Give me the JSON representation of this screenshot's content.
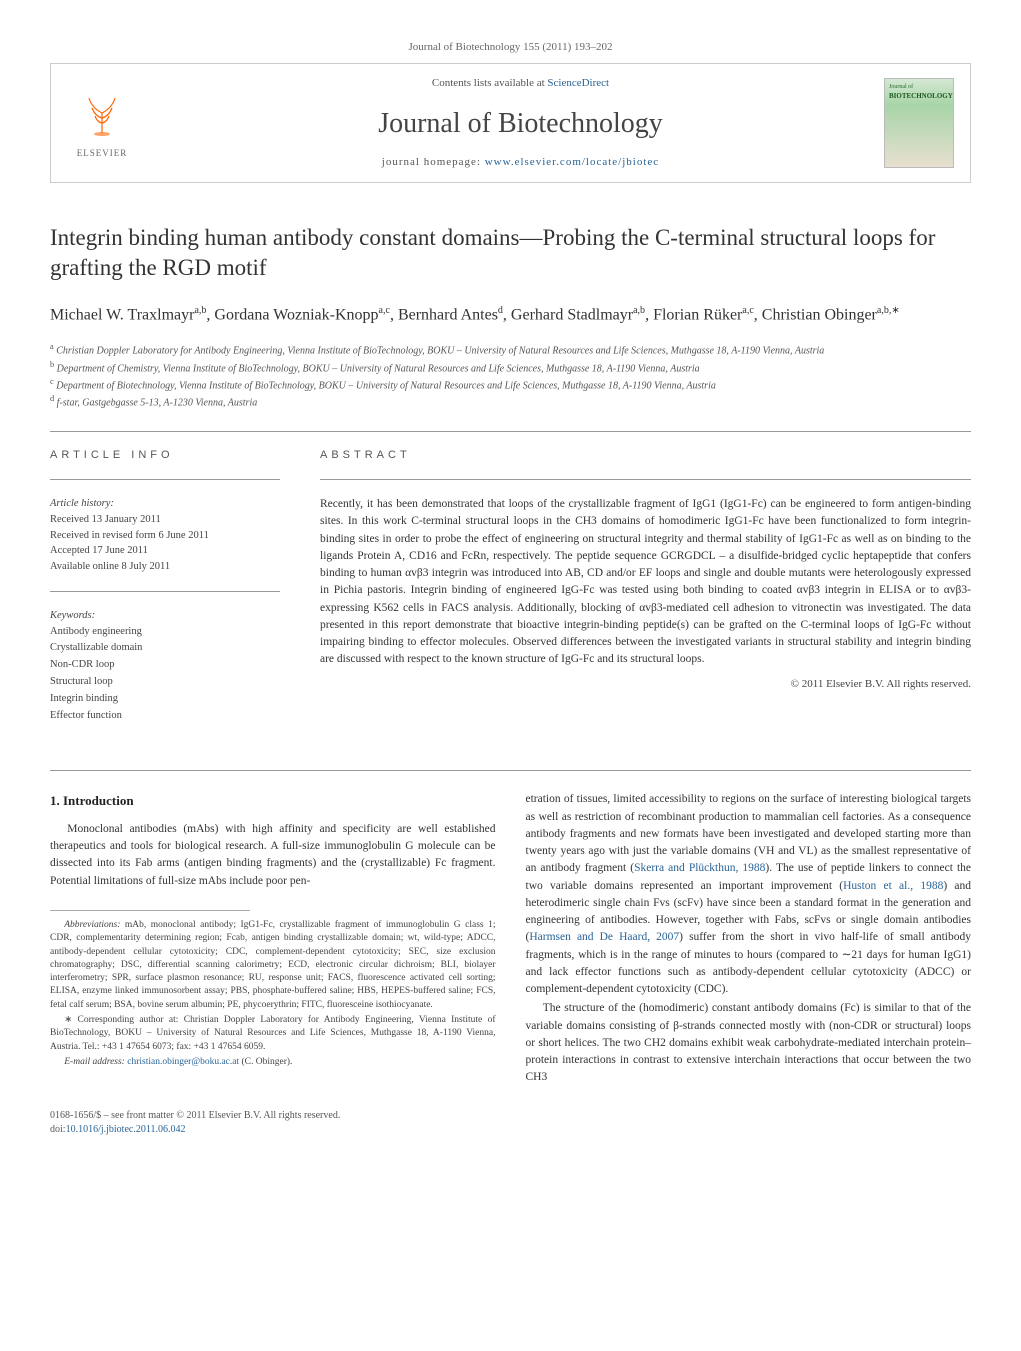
{
  "journal_header": "Journal of Biotechnology 155 (2011) 193–202",
  "header": {
    "contents_prefix": "Contents lists available at ",
    "contents_link": "ScienceDirect",
    "journal_title": "Journal of Biotechnology",
    "homepage_prefix": "journal homepage: ",
    "homepage_link": "www.elsevier.com/locate/jbiotec",
    "elsevier_label": "ELSEVIER",
    "cover_label": "Journal of",
    "cover_title": "BIOTECHNOLOGY"
  },
  "article": {
    "title": "Integrin binding human antibody constant domains—Probing the C-terminal structural loops for grafting the RGD motif",
    "authors_html": "Michael W. Traxlmayr<sup>a,b</sup>, Gordana Wozniak-Knopp<sup>a,c</sup>, Bernhard Antes<sup>d</sup>, Gerhard Stadlmayr<sup>a,b</sup>, Florian Rüker<sup>a,c</sup>, Christian Obinger<sup>a,b,∗</sup>",
    "affiliations": {
      "a": "Christian Doppler Laboratory for Antibody Engineering, Vienna Institute of BioTechnology, BOKU – University of Natural Resources and Life Sciences, Muthgasse 18, A-1190 Vienna, Austria",
      "b": "Department of Chemistry, Vienna Institute of BioTechnology, BOKU – University of Natural Resources and Life Sciences, Muthgasse 18, A-1190 Vienna, Austria",
      "c": "Department of Biotechnology, Vienna Institute of BioTechnology, BOKU – University of Natural Resources and Life Sciences, Muthgasse 18, A-1190 Vienna, Austria",
      "d": "f-star, Gastgebgasse 5-13, A-1230 Vienna, Austria"
    }
  },
  "article_info": {
    "heading": "article info",
    "history_label": "Article history:",
    "history": [
      "Received 13 January 2011",
      "Received in revised form 6 June 2011",
      "Accepted 17 June 2011",
      "Available online 8 July 2011"
    ],
    "keywords_label": "Keywords:",
    "keywords": [
      "Antibody engineering",
      "Crystallizable domain",
      "Non-CDR loop",
      "Structural loop",
      "Integrin binding",
      "Effector function"
    ]
  },
  "abstract": {
    "heading": "abstract",
    "text": "Recently, it has been demonstrated that loops of the crystallizable fragment of IgG1 (IgG1-Fc) can be engineered to form antigen-binding sites. In this work C-terminal structural loops in the CH3 domains of homodimeric IgG1-Fc have been functionalized to form integrin-binding sites in order to probe the effect of engineering on structural integrity and thermal stability of IgG1-Fc as well as on binding to the ligands Protein A, CD16 and FcRn, respectively. The peptide sequence GCRGDCL – a disulfide-bridged cyclic heptapeptide that confers binding to human αvβ3 integrin was introduced into AB, CD and/or EF loops and single and double mutants were heterologously expressed in Pichia pastoris. Integrin binding of engineered IgG-Fc was tested using both binding to coated αvβ3 integrin in ELISA or to αvβ3-expressing K562 cells in FACS analysis. Additionally, blocking of αvβ3-mediated cell adhesion to vitronectin was investigated. The data presented in this report demonstrate that bioactive integrin-binding peptide(s) can be grafted on the C-terminal loops of IgG-Fc without impairing binding to effector molecules. Observed differences between the investigated variants in structural stability and integrin binding are discussed with respect to the known structure of IgG-Fc and its structural loops.",
    "copyright": "© 2011 Elsevier B.V. All rights reserved."
  },
  "body": {
    "intro_heading": "1. Introduction",
    "col1_p1": "Monoclonal antibodies (mAbs) with high affinity and specificity are well established therapeutics and tools for biological research. A full-size immunoglobulin G molecule can be dissected into its Fab arms (antigen binding fragments) and the (crystallizable) Fc fragment. Potential limitations of full-size mAbs include poor pen-",
    "col2_p1": "etration of tissues, limited accessibility to regions on the surface of interesting biological targets as well as restriction of recombinant production to mammalian cell factories. As a consequence antibody fragments and new formats have been investigated and developed starting more than twenty years ago with just the variable domains (VH and VL) as the smallest representative of an antibody fragment (",
    "cite1": "Skerra and Plückthun, 1988",
    "col2_p1b": "). The use of peptide linkers to connect the two variable domains represented an important improvement (",
    "cite2": "Huston et al., 1988",
    "col2_p1c": ") and heterodimeric single chain Fvs (scFv) have since been a standard format in the generation and engineering of antibodies. However, together with Fabs, scFvs or single domain antibodies (",
    "cite3": "Harmsen and De Haard, 2007",
    "col2_p1d": ") suffer from the short in vivo half-life of small antibody fragments, which is in the range of minutes to hours (compared to ∼21 days for human IgG1) and lack effector functions such as antibody-dependent cellular cytotoxicity (ADCC) or complement-dependent cytotoxicity (CDC).",
    "col2_p2": "The structure of the (homodimeric) constant antibody domains (Fc) is similar to that of the variable domains consisting of β-strands connected mostly with (non-CDR or structural) loops or short helices. The two CH2 domains exhibit weak carbohydrate-mediated interchain protein–protein interactions in contrast to extensive interchain interactions that occur between the two CH3"
  },
  "footnotes": {
    "abbrev_label": "Abbreviations:",
    "abbrev_text": " mAb, monoclonal antibody; IgG1-Fc, crystallizable fragment of immunoglobulin G class 1; CDR, complementarity determining region; Fcab, antigen binding crystallizable domain; wt, wild-type; ADCC, antibody-dependent cellular cytotoxicity; CDC, complement-dependent cytotoxicity; SEC, size exclusion chromatography; DSC, differential scanning calorimetry; ECD, electronic circular dichroism; BLI, biolayer interferometry; SPR, surface plasmon resonance; RU, response unit; FACS, fluorescence activated cell sorting; ELISA, enzyme linked immunosorbent assay; PBS, phosphate-buffered saline; HBS, HEPES-buffered saline; FCS, fetal calf serum; BSA, bovine serum albumin; PE, phycoerythrin; FITC, fluoresceine isothiocyanate.",
    "corr_label": "∗ Corresponding author at: ",
    "corr_text": "Christian Doppler Laboratory for Antibody Engineering, Vienna Institute of BioTechnology, BOKU – University of Natural Resources and Life Sciences, Muthgasse 18, A-1190 Vienna, Austria. Tel.: +43 1 47654 6073; fax: +43 1 47654 6059.",
    "email_label": "E-mail address: ",
    "email": "christian.obinger@boku.ac.at",
    "email_suffix": " (C. Obinger)."
  },
  "footer": {
    "issn_line": "0168-1656/$ – see front matter © 2011 Elsevier B.V. All rights reserved.",
    "doi_prefix": "doi:",
    "doi": "10.1016/j.jbiotec.2011.06.042"
  },
  "colors": {
    "link": "#2a6496",
    "text": "#333333",
    "muted": "#666666",
    "orange": "#ff6600",
    "border": "#cccccc"
  }
}
